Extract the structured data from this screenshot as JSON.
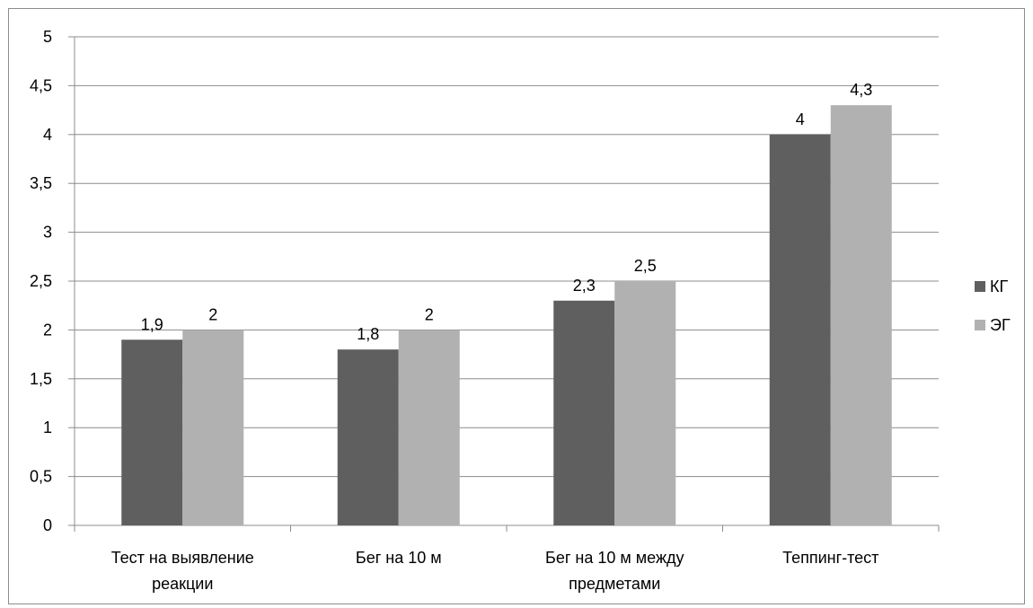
{
  "chart_data": {
    "type": "bar",
    "categories": [
      [
        "Тест на выявление",
        "реакции"
      ],
      [
        "Бег на 10 м"
      ],
      [
        "Бег на 10 м между",
        "предметами"
      ],
      [
        "Теппинг-тест"
      ]
    ],
    "series": [
      {
        "name": "КГ",
        "values": [
          1.9,
          1.8,
          2.3,
          4.0
        ],
        "labels": [
          "1,9",
          "1,8",
          "2,3",
          "4"
        ],
        "color": "#5f5f5f"
      },
      {
        "name": "ЭГ",
        "values": [
          2.0,
          2.0,
          2.5,
          4.3
        ],
        "labels": [
          "2",
          "2",
          "2,5",
          "4,3"
        ],
        "color": "#b1b1b1"
      }
    ],
    "ylim": [
      0,
      5
    ],
    "yticks": [
      "0",
      "0,5",
      "1",
      "1,5",
      "2",
      "2,5",
      "3",
      "3,5",
      "4",
      "4,5",
      "5"
    ],
    "grid": true,
    "legend": "right",
    "title": "",
    "xlabel": "",
    "ylabel": ""
  }
}
